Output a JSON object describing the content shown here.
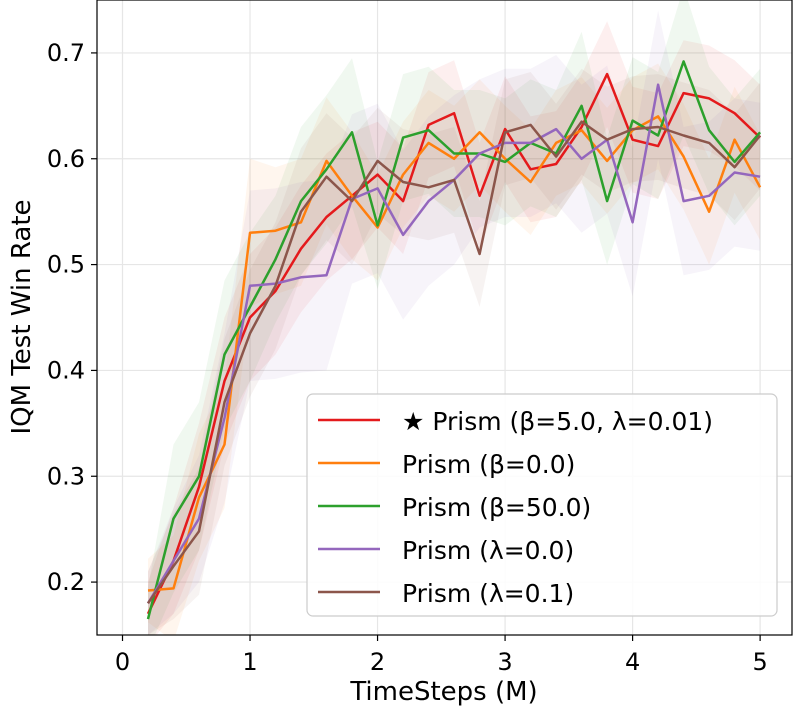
{
  "chart_data": {
    "type": "line",
    "title": "",
    "xlabel": "TimeSteps (M)",
    "ylabel": "IQM Test Win Rate",
    "xlim": [
      -0.2,
      5.25
    ],
    "ylim": [
      0.15,
      0.75
    ],
    "xticks": [
      0,
      1,
      2,
      3,
      4,
      5
    ],
    "xtick_labels": [
      "0",
      "1",
      "2",
      "3",
      "4",
      "5"
    ],
    "yticks": [
      0.2,
      0.3,
      0.4,
      0.5,
      0.6,
      0.7
    ],
    "ytick_labels": [
      "0.2",
      "0.3",
      "0.4",
      "0.5",
      "0.6",
      "0.7"
    ],
    "grid": true,
    "legend_position": "bottom-right",
    "x": [
      0.2,
      0.4,
      0.6,
      0.8,
      1.0,
      1.2,
      1.4,
      1.6,
      1.8,
      2.0,
      2.2,
      2.4,
      2.6,
      2.8,
      3.0,
      3.2,
      3.4,
      3.6,
      3.8,
      4.0,
      4.2,
      4.4,
      4.6,
      4.8,
      5.0
    ],
    "series": [
      {
        "name": "★ Prism (β=5.0, λ=0.01)",
        "color": "#e41a1c",
        "values": [
          0.17,
          0.22,
          0.29,
          0.39,
          0.45,
          0.475,
          0.515,
          0.545,
          0.565,
          0.585,
          0.56,
          0.632,
          0.643,
          0.565,
          0.628,
          0.59,
          0.595,
          0.63,
          0.68,
          0.618,
          0.612,
          0.662,
          0.657,
          0.643,
          0.62
        ],
        "band": [
          0.03,
          0.05,
          0.06,
          0.06,
          0.06,
          0.06,
          0.06,
          0.06,
          0.06,
          0.05,
          0.05,
          0.05,
          0.05,
          0.05,
          0.05,
          0.05,
          0.05,
          0.05,
          0.05,
          0.05,
          0.05,
          0.05,
          0.05,
          0.05,
          0.05
        ]
      },
      {
        "name": "Prism (β=0.0)",
        "color": "#ff7f0e",
        "values": [
          0.192,
          0.194,
          0.28,
          0.33,
          0.53,
          0.532,
          0.54,
          0.598,
          0.565,
          0.535,
          0.585,
          0.615,
          0.6,
          0.625,
          0.6,
          0.578,
          0.615,
          0.627,
          0.598,
          0.627,
          0.64,
          0.602,
          0.55,
          0.618,
          0.573
        ],
        "band": [
          0.03,
          0.05,
          0.06,
          0.06,
          0.07,
          0.06,
          0.06,
          0.06,
          0.06,
          0.05,
          0.05,
          0.05,
          0.05,
          0.05,
          0.05,
          0.05,
          0.05,
          0.05,
          0.05,
          0.05,
          0.05,
          0.05,
          0.05,
          0.05,
          0.05
        ]
      },
      {
        "name": "Prism (β=50.0)",
        "color": "#2ca02c",
        "values": [
          0.165,
          0.26,
          0.3,
          0.415,
          0.46,
          0.505,
          0.56,
          0.59,
          0.625,
          0.537,
          0.62,
          0.627,
          0.605,
          0.605,
          0.597,
          0.615,
          0.605,
          0.65,
          0.56,
          0.636,
          0.622,
          0.692,
          0.627,
          0.597,
          0.625
        ],
        "band": [
          0.03,
          0.07,
          0.07,
          0.07,
          0.07,
          0.06,
          0.07,
          0.07,
          0.07,
          0.06,
          0.06,
          0.06,
          0.06,
          0.06,
          0.06,
          0.06,
          0.06,
          0.07,
          0.06,
          0.06,
          0.06,
          0.07,
          0.06,
          0.06,
          0.06
        ]
      },
      {
        "name": "Prism (λ=0.0)",
        "color": "#9467bd",
        "values": [
          0.18,
          0.22,
          0.26,
          0.355,
          0.48,
          0.482,
          0.488,
          0.49,
          0.562,
          0.572,
          0.528,
          0.56,
          0.58,
          0.605,
          0.615,
          0.615,
          0.628,
          0.6,
          0.618,
          0.54,
          0.67,
          0.56,
          0.565,
          0.587,
          0.583
        ],
        "band": [
          0.03,
          0.05,
          0.06,
          0.08,
          0.09,
          0.09,
          0.09,
          0.09,
          0.08,
          0.08,
          0.08,
          0.08,
          0.08,
          0.07,
          0.07,
          0.07,
          0.07,
          0.07,
          0.07,
          0.07,
          0.07,
          0.07,
          0.07,
          0.07,
          0.07
        ]
      },
      {
        "name": "Prism (λ=0.1)",
        "color": "#8c564b",
        "values": [
          0.18,
          0.215,
          0.248,
          0.37,
          0.435,
          0.48,
          0.55,
          0.583,
          0.56,
          0.598,
          0.578,
          0.573,
          0.58,
          0.51,
          0.625,
          0.632,
          0.602,
          0.635,
          0.618,
          0.628,
          0.63,
          0.622,
          0.615,
          0.592,
          0.622
        ],
        "band": [
          0.03,
          0.05,
          0.06,
          0.06,
          0.06,
          0.06,
          0.06,
          0.06,
          0.06,
          0.05,
          0.05,
          0.05,
          0.05,
          0.05,
          0.05,
          0.05,
          0.05,
          0.05,
          0.05,
          0.05,
          0.05,
          0.05,
          0.05,
          0.05,
          0.05
        ]
      }
    ]
  }
}
